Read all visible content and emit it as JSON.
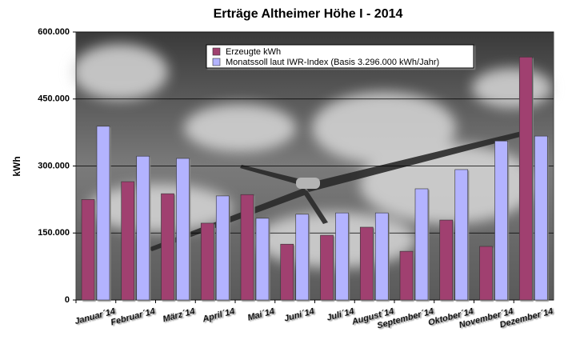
{
  "chart_data": {
    "type": "bar",
    "title": "Erträge Altheimer Höhe I - 2014",
    "y_label": "kWh",
    "categories": [
      "Januar´14",
      "Februar´14",
      "März´14",
      "April´14",
      "Mai´14",
      "Juni´14",
      "Juli´14",
      "August´14",
      "September´14",
      "Oktober´14",
      "November´14",
      "Dezember´14"
    ],
    "series": [
      {
        "name": "Erzeugte kWh",
        "color": "#a0416f",
        "values": [
          225000,
          265000,
          238000,
          172000,
          236000,
          125000,
          145000,
          163000,
          109000,
          179000,
          120000,
          544000
        ]
      },
      {
        "name": "Monatssoll laut IWR-Index (Basis 3.296.000 kWh/Jahr)",
        "color": "#b3b3ff",
        "values": [
          389000,
          322000,
          317000,
          233000,
          183000,
          192000,
          195000,
          195000,
          249000,
          292000,
          356000,
          367000
        ]
      }
    ],
    "ylim": [
      0,
      600000
    ],
    "yticks": [
      0,
      {
        "value": 150000,
        "label": "150.000"
      },
      {
        "value": 300000,
        "label": "300.000"
      },
      {
        "value": 450000,
        "label": "450.000"
      },
      {
        "value": 600000,
        "label": "600.000"
      }
    ],
    "grid": true
  }
}
